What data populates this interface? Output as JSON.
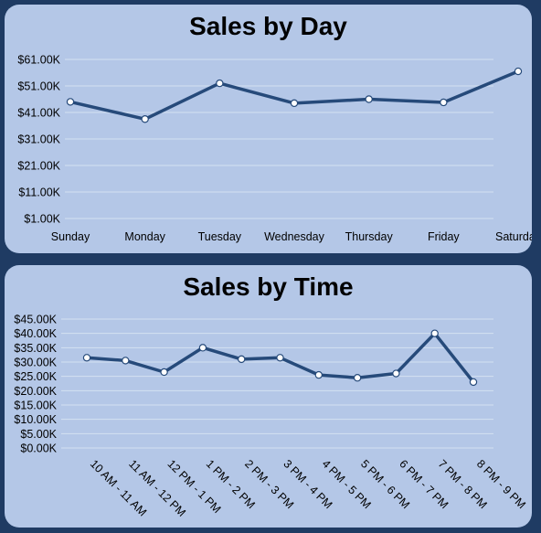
{
  "chart_data": [
    {
      "type": "line",
      "title": "Sales by Day",
      "categories": [
        "Sunday",
        "Monday",
        "Tuesday",
        "Wednesday",
        "Thursday",
        "Friday",
        "Saturday"
      ],
      "values": [
        45.0,
        38.5,
        52.0,
        44.5,
        46.0,
        44.8,
        56.5
      ],
      "ylim": [
        1,
        61
      ],
      "yticks": [
        61,
        51,
        41,
        31,
        21,
        11,
        1
      ],
      "ytick_labels": [
        "$61.00K",
        "$51.00K",
        "$41.00K",
        "$31.00K",
        "$21.00K",
        "$11.00K",
        "$1.00K"
      ],
      "grid": true,
      "line_color": "#264a7a"
    },
    {
      "type": "line",
      "title": "Sales by Time",
      "categories": [
        "10 AM - 11 AM",
        "11 AM - 12 PM",
        "12 PM - 1 PM",
        "1 PM - 2 PM",
        "2 PM - 3 PM",
        "3 PM - 4 PM",
        "4 PM - 5 PM",
        "5 PM - 6 PM",
        "6 PM - 7 PM",
        "7 PM - 8 PM",
        "8 PM - 9 PM"
      ],
      "values": [
        31.5,
        30.5,
        26.5,
        35.0,
        31.0,
        31.5,
        25.5,
        24.5,
        26.0,
        40.0,
        23.0
      ],
      "ylim": [
        0,
        45
      ],
      "yticks": [
        45,
        40,
        35,
        30,
        25,
        20,
        15,
        10,
        5,
        0
      ],
      "ytick_labels": [
        "$45.00K",
        "$40.00K",
        "$35.00K",
        "$30.00K",
        "$25.00K",
        "$20.00K",
        "$15.00K",
        "$10.00K",
        "$5.00K",
        "$0.00K"
      ],
      "grid": true,
      "line_color": "#264a7a"
    }
  ]
}
